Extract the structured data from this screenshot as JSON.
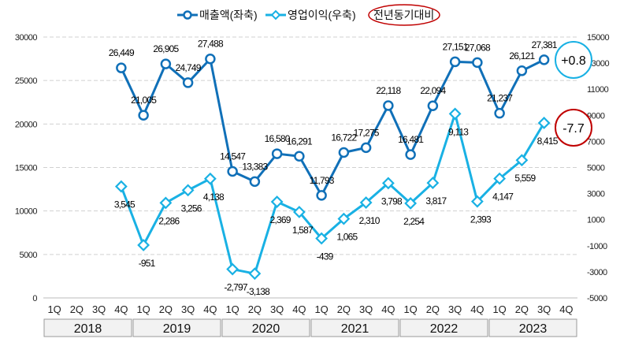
{
  "chart_data": {
    "type": "line",
    "title": "",
    "legend": {
      "placement": "top",
      "entries": [
        "매출액(좌축)",
        "영업이익(우축)",
        "전년동기대비"
      ]
    },
    "categories": [
      "1Q",
      "2Q",
      "3Q",
      "4Q",
      "1Q",
      "2Q",
      "3Q",
      "4Q",
      "1Q",
      "2Q",
      "3Q",
      "4Q",
      "1Q",
      "2Q",
      "3Q",
      "4Q",
      "1Q",
      "2Q",
      "3Q",
      "4Q",
      "1Q",
      "2Q",
      "3Q",
      "4Q"
    ],
    "years": [
      "2018",
      "2019",
      "2020",
      "2021",
      "2022",
      "2023"
    ],
    "y_left": {
      "range": [
        0,
        30000
      ],
      "ticks": [
        "0",
        "5000",
        "10000",
        "15000",
        "20000",
        "25000",
        "30000"
      ]
    },
    "y_right": {
      "range": [
        -5000,
        15000
      ],
      "ticks": [
        "-5000",
        "-3000",
        "-1000",
        "1000",
        "3000",
        "5000",
        "7000",
        "9000",
        "11000",
        "13000",
        "15000"
      ]
    },
    "grid": true,
    "series": [
      {
        "name": "매출액(좌축)",
        "axis": "left",
        "color": "#1070b8",
        "marker": "circle",
        "values": [
          null,
          null,
          null,
          26449,
          21005,
          26905,
          24749,
          27488,
          14547,
          13383,
          16580,
          16291,
          11793,
          16722,
          17275,
          22118,
          16481,
          22094,
          27151,
          27068,
          21237,
          26121,
          27381,
          null
        ],
        "labels": [
          null,
          null,
          null,
          "26,449",
          "21,005",
          "26,905",
          "24,749",
          "27,488",
          "14,547",
          "13,383",
          "16,580",
          "16,291",
          "11,793",
          "16,722",
          "17,275",
          "22,118",
          "16,481",
          "22,094",
          "27,151",
          "27,068",
          "21,237",
          "26,121",
          "27,381",
          null
        ]
      },
      {
        "name": "영업이익(우축)",
        "axis": "right",
        "color": "#19b1e4",
        "marker": "diamond",
        "values": [
          null,
          null,
          null,
          3545,
          -951,
          2286,
          3256,
          4138,
          -2797,
          -3138,
          2369,
          1587,
          -439,
          1065,
          2310,
          3798,
          2254,
          3817,
          9113,
          2393,
          4147,
          5559,
          8415,
          null
        ],
        "labels": [
          null,
          null,
          null,
          "3,545",
          "-951",
          "2,286",
          "3,256",
          "4,138",
          "-2,797",
          "-3,138",
          "2,369",
          "1,587",
          "-439",
          "1,065",
          "2,310",
          "3,798",
          "2,254",
          "3,817",
          "9,113",
          "2,393",
          "4,147",
          "5,559",
          "8,415",
          null
        ]
      }
    ],
    "annotations": [
      {
        "text": "+0.8",
        "series": "매출액(좌축)",
        "color": "#19b1e4"
      },
      {
        "text": "-7.7",
        "series": "영업이익(우축)",
        "color": "#c00000"
      }
    ]
  }
}
